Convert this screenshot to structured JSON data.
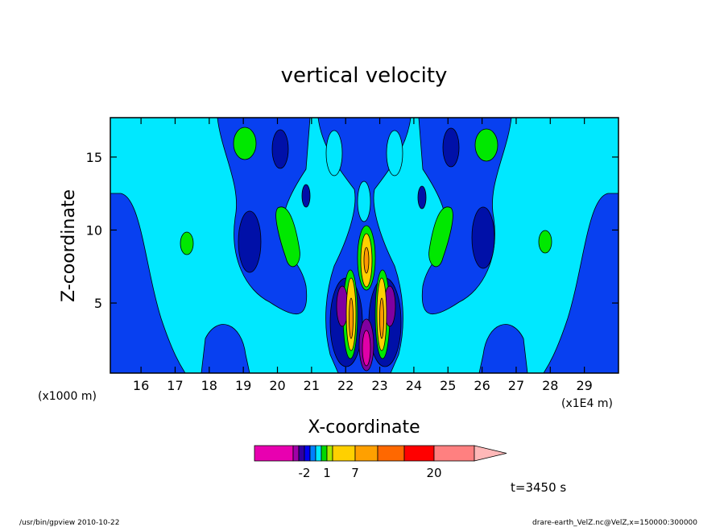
{
  "chart_data": {
    "type": "contour",
    "title": "vertical velocity",
    "xlabel": "X-coordinate",
    "ylabel": "Z-coordinate",
    "x_unit_left": "(x1000 m)",
    "x_unit_right": "(x1E4 m)",
    "xlim": [
      15.1,
      30.0
    ],
    "ylim": [
      0.2,
      17.7
    ],
    "x_ticks": [
      16,
      17,
      18,
      19,
      20,
      21,
      22,
      23,
      24,
      25,
      26,
      27,
      28,
      29
    ],
    "y_ticks": [
      5,
      10,
      15
    ],
    "time_label": "t=3450 s",
    "colorbar": {
      "labels": [
        {
          "text": "-2",
          "level": -2
        },
        {
          "text": "1",
          "level": 1
        },
        {
          "text": "7",
          "level": 7
        },
        {
          "text": "20",
          "level": 20
        }
      ],
      "levels": [
        -20,
        -7,
        -2,
        -1,
        -0.5,
        0.5,
        1,
        2,
        7,
        10,
        15,
        20,
        30
      ],
      "colors": [
        "#e800b0",
        "#a000a8",
        "#3000a0",
        "#0000f0",
        "#0080ff",
        "#00e8ff",
        "#00d800",
        "#a8e800",
        "#ffd000",
        "#ffa000",
        "#ff6800",
        "#ff0000",
        "#ff8080",
        "#ffb8b8"
      ]
    },
    "contour_colors": {
      "background": "#00e8ff",
      "blue": "#0840f0",
      "navy": "#0010a8",
      "green": "#00e800",
      "yellow": "#ffd000",
      "orange": "#ff9800",
      "purple": "#8000a0",
      "magenta": "#e000a8"
    }
  },
  "footer": {
    "left": "/usr/bin/gpview   2010-10-22",
    "right": "drare-earth_VelZ.nc@VelZ,x=150000:300000"
  }
}
